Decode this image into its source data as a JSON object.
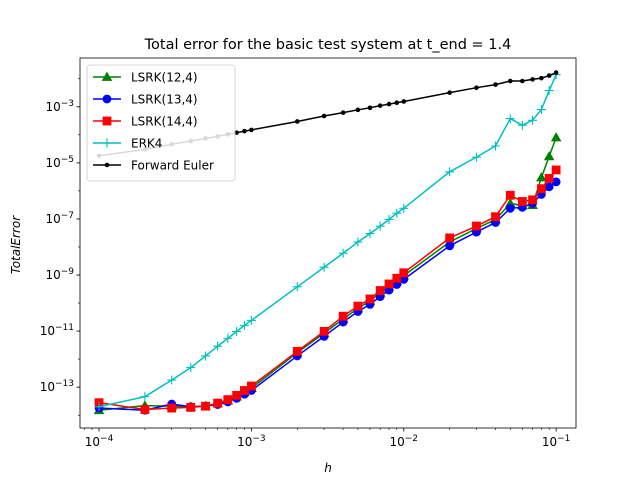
{
  "chart_data": {
    "type": "line",
    "title": "Total error for the basic test system at t_end = 1.4",
    "xlabel": "h",
    "ylabel": "TotalError",
    "xscale": "log",
    "yscale": "log",
    "xlim": [
      7.5e-05,
      0.135
    ],
    "ylim": [
      3.5e-15,
      0.055
    ],
    "xticks": [
      {
        "value": 0.0001,
        "base": "10",
        "exp": "−4"
      },
      {
        "value": 0.001,
        "base": "10",
        "exp": "−3"
      },
      {
        "value": 0.01,
        "base": "10",
        "exp": "−2"
      },
      {
        "value": 0.1,
        "base": "10",
        "exp": "−1"
      }
    ],
    "yticks": [
      {
        "value": 1e-13,
        "base": "10",
        "exp": "−13"
      },
      {
        "value": 1e-11,
        "base": "10",
        "exp": "−11"
      },
      {
        "value": 1e-09,
        "base": "10",
        "exp": "−9"
      },
      {
        "value": 1e-07,
        "base": "10",
        "exp": "−7"
      },
      {
        "value": 1e-05,
        "base": "10",
        "exp": "−5"
      },
      {
        "value": 0.001,
        "base": "10",
        "exp": "−3"
      }
    ],
    "grid": false,
    "legend_position": "top-left",
    "series": [
      {
        "name": "LSRK(12,4)",
        "color": "#008000",
        "marker": "triangle",
        "x": [
          0.0001,
          0.0002,
          0.0003,
          0.0004,
          0.0005,
          0.0006,
          0.0007,
          0.0008,
          0.0009,
          0.001,
          0.002,
          0.003,
          0.004,
          0.005,
          0.006,
          0.007,
          0.008,
          0.009,
          0.01,
          0.02,
          0.03,
          0.04,
          0.05,
          0.06,
          0.07,
          0.08,
          0.09,
          0.1
        ],
        "y": [
          1.5e-14,
          2.2e-14,
          2.1e-14,
          2e-14,
          2.1e-14,
          2.6e-14,
          3.3e-14,
          4.6e-14,
          6.6e-14,
          9.2e-14,
          1.7e-12,
          8.4e-12,
          2.7e-11,
          6.4e-11,
          1.2e-10,
          2.3e-10,
          3.8e-10,
          6e-10,
          9.5e-10,
          1.5e-08,
          4.6e-08,
          9.5e-08,
          3.6e-07,
          3e-07,
          3.1e-07,
          3e-06,
          1.7e-05,
          8e-05
        ]
      },
      {
        "name": "LSRK(13,4)",
        "color": "#0000ff",
        "marker": "circle",
        "x": [
          0.0001,
          0.0002,
          0.0003,
          0.0004,
          0.0005,
          0.0006,
          0.0007,
          0.0008,
          0.0009,
          0.001,
          0.002,
          0.003,
          0.004,
          0.005,
          0.006,
          0.007,
          0.008,
          0.009,
          0.01,
          0.02,
          0.03,
          0.04,
          0.05,
          0.06,
          0.07,
          0.08,
          0.09,
          0.1
        ],
        "y": [
          1.8e-14,
          1.5e-14,
          2.5e-14,
          2e-14,
          2.1e-14,
          2.4e-14,
          3e-14,
          4e-14,
          5.6e-14,
          7.6e-14,
          1.3e-12,
          6.5e-12,
          2.1e-11,
          5e-11,
          9e-11,
          1.7e-10,
          2.9e-10,
          4.6e-10,
          7e-10,
          1.1e-08,
          3.4e-08,
          7.5e-08,
          2.4e-07,
          2.6e-07,
          3.6e-07,
          7.5e-07,
          1.4e-06,
          2.1e-06
        ]
      },
      {
        "name": "LSRK(14,4)",
        "color": "#ff0000",
        "marker": "square",
        "x": [
          0.0001,
          0.0002,
          0.0003,
          0.0004,
          0.0005,
          0.0006,
          0.0007,
          0.0008,
          0.0009,
          0.001,
          0.002,
          0.003,
          0.004,
          0.005,
          0.006,
          0.007,
          0.008,
          0.009,
          0.01,
          0.02,
          0.03,
          0.04,
          0.05,
          0.06,
          0.07,
          0.08,
          0.09,
          0.1
        ],
        "y": [
          2.8e-14,
          1.6e-14,
          1.8e-14,
          1.9e-14,
          2.1e-14,
          2.7e-14,
          3.6e-14,
          5.1e-14,
          7.6e-14,
          1.1e-13,
          1.9e-12,
          9.8e-12,
          3.4e-11,
          7.8e-11,
          1.4e-10,
          2.8e-10,
          4.8e-10,
          7.7e-10,
          1.2e-09,
          2.1e-08,
          5.6e-08,
          1.2e-07,
          7e-07,
          4.2e-07,
          4.8e-07,
          1.2e-06,
          2.8e-06,
          5.6e-06
        ]
      },
      {
        "name": "ERK4",
        "color": "#00bfbf",
        "marker": "plus",
        "x": [
          0.0001,
          0.0002,
          0.0003,
          0.0004,
          0.0005,
          0.0006,
          0.0007,
          0.0008,
          0.0009,
          0.001,
          0.002,
          0.003,
          0.004,
          0.005,
          0.006,
          0.007,
          0.008,
          0.009,
          0.01,
          0.02,
          0.03,
          0.04,
          0.05,
          0.06,
          0.07,
          0.08,
          0.09,
          0.1
        ],
        "y": [
          2e-14,
          4.6e-14,
          1.8e-13,
          5e-13,
          1.3e-12,
          2.9e-12,
          5.5e-12,
          9.7e-12,
          1.6e-11,
          2.4e-11,
          3.8e-10,
          1.9e-09,
          6e-09,
          1.5e-08,
          3e-08,
          5.5e-08,
          9.6e-08,
          1.6e-07,
          2.4e-07,
          4.8e-06,
          1.6e-05,
          4e-05,
          0.00038,
          0.00022,
          0.00033,
          0.0008,
          0.0038,
          0.014
        ]
      },
      {
        "name": "Forward Euler",
        "color": "#000000",
        "marker": "dot",
        "x": [
          0.0001,
          0.0002,
          0.0003,
          0.0004,
          0.0005,
          0.0006,
          0.0007,
          0.0008,
          0.0009,
          0.001,
          0.002,
          0.003,
          0.004,
          0.005,
          0.006,
          0.007,
          0.008,
          0.009,
          0.01,
          0.02,
          0.03,
          0.04,
          0.05,
          0.06,
          0.07,
          0.08,
          0.09,
          0.1
        ],
        "y": [
          1.8e-05,
          3e-05,
          4.6e-05,
          6e-05,
          7.5e-05,
          8.8e-05,
          0.000105,
          0.00012,
          0.000135,
          0.00015,
          0.0003,
          0.00047,
          0.00062,
          0.00078,
          0.00092,
          0.0011,
          0.00125,
          0.0014,
          0.00155,
          0.0032,
          0.0048,
          0.0062,
          0.0083,
          0.0083,
          0.0095,
          0.0105,
          0.013,
          0.0165
        ]
      }
    ]
  }
}
